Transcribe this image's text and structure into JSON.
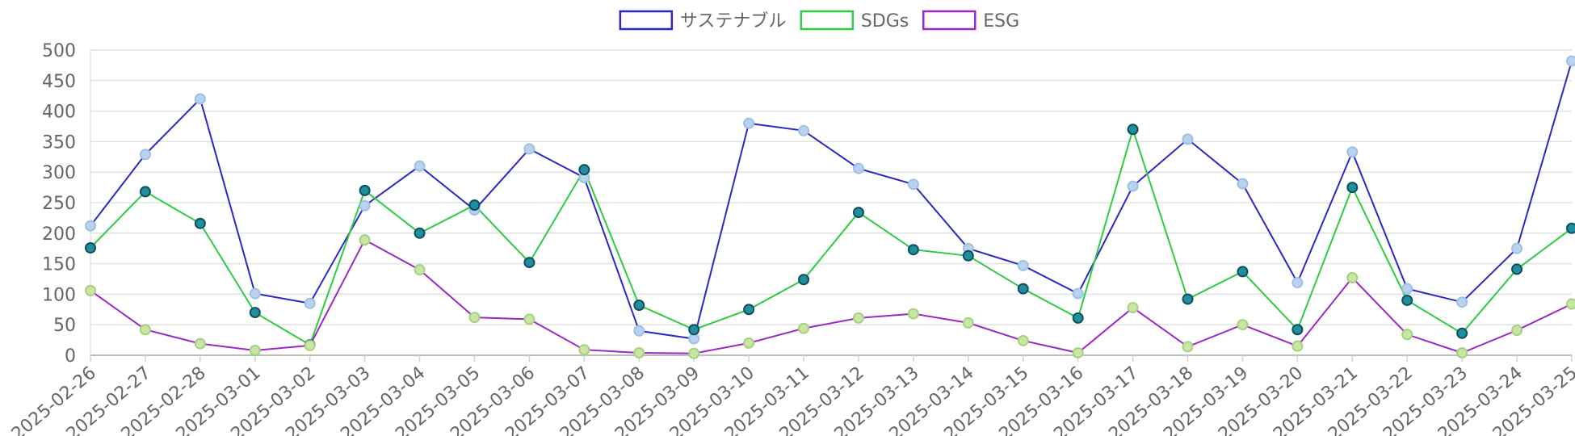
{
  "chart_data": {
    "type": "line",
    "title": "",
    "xlabel": "",
    "ylabel": "",
    "ylim": [
      0,
      500
    ],
    "yticks": [
      0,
      50,
      100,
      150,
      200,
      250,
      300,
      350,
      400,
      450,
      500
    ],
    "grid": true,
    "legend_position": "top-center",
    "categories": [
      "2025-02-26",
      "2025-02-27",
      "2025-02-28",
      "2025-03-01",
      "2025-03-02",
      "2025-03-03",
      "2025-03-04",
      "2025-03-05",
      "2025-03-06",
      "2025-03-07",
      "2025-03-08",
      "2025-03-09",
      "2025-03-10",
      "2025-03-11",
      "2025-03-12",
      "2025-03-13",
      "2025-03-14",
      "2025-03-15",
      "2025-03-16",
      "2025-03-17",
      "2025-03-18",
      "2025-03-19",
      "2025-03-20",
      "2025-03-21",
      "2025-03-22",
      "2025-03-23",
      "2025-03-24",
      "2025-03-25"
    ],
    "series": [
      {
        "name": "サステナブル",
        "color": "#2b27c8",
        "point_fill": "#b9d3ee",
        "point_stroke": "#9fc0e6",
        "values": [
          212,
          329,
          420,
          101,
          85,
          245,
          310,
          238,
          338,
          291,
          40,
          27,
          380,
          368,
          306,
          280,
          175,
          147,
          101,
          277,
          354,
          281,
          119,
          333,
          109,
          87,
          175,
          482
        ]
      },
      {
        "name": "SDGs",
        "color": "#2ecc40",
        "point_fill": "#1f8fa0",
        "point_stroke": "#0f4f5c",
        "values": [
          176,
          268,
          216,
          70,
          17,
          270,
          200,
          246,
          152,
          304,
          82,
          42,
          75,
          124,
          234,
          173,
          163,
          109,
          61,
          370,
          92,
          137,
          42,
          275,
          90,
          36,
          141,
          208
        ]
      },
      {
        "name": "ESG",
        "color": "#9b27c8",
        "point_fill": "#c9e6a6",
        "point_stroke": "#a6d17e",
        "values": [
          106,
          42,
          19,
          8,
          16,
          189,
          140,
          62,
          59,
          9,
          4,
          3,
          20,
          44,
          61,
          68,
          53,
          24,
          4,
          78,
          14,
          50,
          15,
          127,
          34,
          4,
          41,
          84
        ]
      }
    ]
  }
}
